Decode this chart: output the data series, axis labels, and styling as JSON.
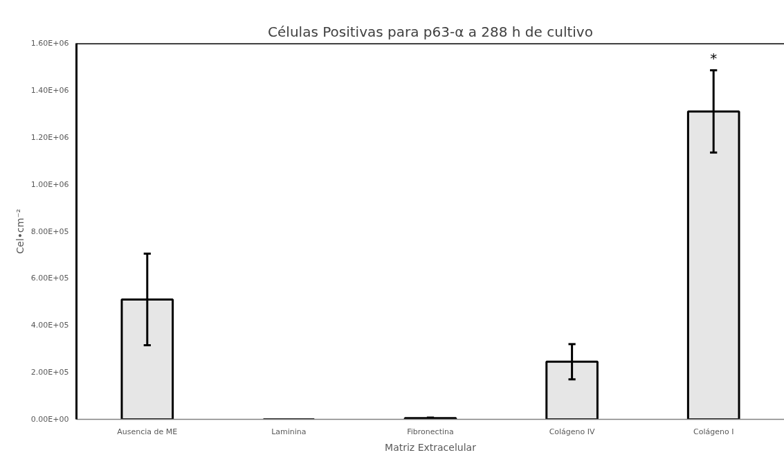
{
  "chart_data": {
    "type": "bar",
    "title": "Células Positivas para p63-α a 288 h de cultivo",
    "xlabel": "Matriz Extracelular",
    "ylabel": "Cel•cm⁻²",
    "categories": [
      "Ausencia de ME",
      "Laminina",
      "Fibronectina",
      "Colágeno IV",
      "Colágeno I"
    ],
    "values": [
      510000,
      null,
      5000,
      245000,
      1310000
    ],
    "errors": [
      195000,
      null,
      2000,
      75000,
      175000
    ],
    "color": "#e6e6e6",
    "ylim": [
      0,
      1600000
    ],
    "yticks": [
      {
        "value": 0,
        "label": "0.00E+00"
      },
      {
        "value": 200000,
        "label": "2.00E+05"
      },
      {
        "value": 400000,
        "label": "4.00E+05"
      },
      {
        "value": 600000,
        "label": "6.00E+05"
      },
      {
        "value": 800000,
        "label": "8.00E+05"
      },
      {
        "value": 1000000,
        "label": "1.00E+06"
      },
      {
        "value": 1200000,
        "label": "1.20E+06"
      },
      {
        "value": 1400000,
        "label": "1.40E+06"
      },
      {
        "value": 1600000,
        "label": "1.60E+06"
      }
    ],
    "annotations": [
      "*"
    ],
    "grid": false
  }
}
